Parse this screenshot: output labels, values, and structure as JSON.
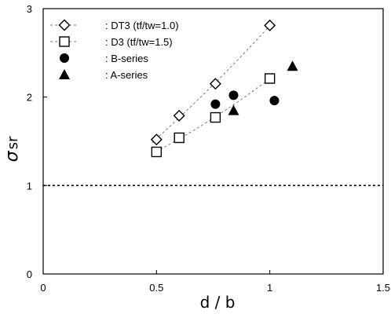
{
  "chart_data": {
    "type": "scatter",
    "title": "",
    "xlabel": "d / b",
    "ylabel_symbol": "σ",
    "ylabel_subscript": "sr",
    "xlim": [
      0,
      1.5
    ],
    "ylim": [
      0,
      3
    ],
    "x_ticks": [
      "0",
      "0.5",
      "1",
      "1.5"
    ],
    "y_ticks": [
      "0",
      "1",
      "2",
      "3"
    ],
    "reference_line": {
      "y": 1,
      "style": "dotted"
    },
    "grid": false,
    "legend_position": "top-left",
    "series": [
      {
        "name": ": DT3 (tf/tw=1.0)",
        "marker": "diamond-open",
        "trend": "dashed",
        "points": [
          [
            0.5,
            1.52
          ],
          [
            0.6,
            1.79
          ],
          [
            0.76,
            2.15
          ],
          [
            1.0,
            2.81
          ]
        ]
      },
      {
        "name": ": D3 (tf/tw=1.5)",
        "marker": "square-open",
        "trend": "dashed",
        "points": [
          [
            0.5,
            1.38
          ],
          [
            0.6,
            1.54
          ],
          [
            0.76,
            1.77
          ],
          [
            1.0,
            2.21
          ]
        ]
      },
      {
        "name": ": B-series",
        "marker": "circle-filled",
        "points": [
          [
            0.76,
            1.92
          ],
          [
            0.84,
            2.02
          ],
          [
            1.02,
            1.96
          ]
        ]
      },
      {
        "name": ": A-series",
        "marker": "triangle-filled",
        "points": [
          [
            0.84,
            1.85
          ],
          [
            1.1,
            2.35
          ]
        ]
      }
    ]
  }
}
